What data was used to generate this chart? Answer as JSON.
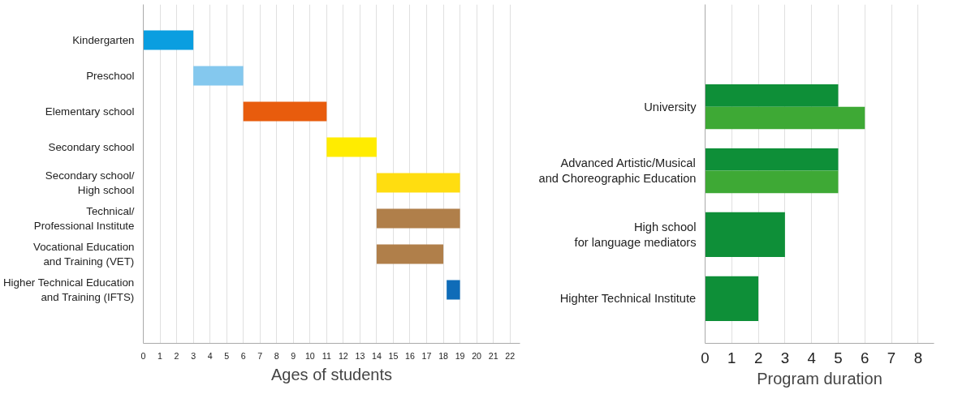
{
  "chart_data": [
    {
      "type": "bar",
      "orientation": "horizontal",
      "xlabel": "Ages of students",
      "categories": [
        "Kindergarten",
        "Preschool",
        "Elementary school",
        "Secondary school",
        "Secondary school/\nHigh school",
        "Technical/\nProfessional Institute",
        "Vocational Education\nand Training (VET)",
        "Higher Technical Education\nand Training (IFTS)"
      ],
      "base": [
        0,
        3,
        6,
        11,
        14,
        14,
        14,
        18.2
      ],
      "values": [
        3,
        3,
        5,
        3,
        5,
        5,
        4,
        0.8
      ],
      "colors": [
        "#0a9ee0",
        "#84c8ee",
        "#e85c0d",
        "#ffec00",
        "#ffdd10",
        "#b07f4a",
        "#b07f4a",
        "#0f6cb8"
      ],
      "xlim": [
        0,
        22.6
      ],
      "xticks": [
        0,
        1,
        2,
        3,
        4,
        5,
        6,
        7,
        8,
        9,
        10,
        11,
        12,
        13,
        14,
        15,
        16,
        17,
        18,
        19,
        20,
        21,
        22
      ],
      "grid": "x"
    },
    {
      "type": "bar",
      "orientation": "horizontal",
      "xlabel": "Program duration",
      "categories": [
        "University",
        "Advanced Artistic/Musical\nand Choreographic Education",
        "High school\nfor language mediators",
        "Highter Technical Institute"
      ],
      "series": [
        {
          "color": "#0e8f38",
          "values": [
            5,
            5,
            3,
            2
          ]
        },
        {
          "color": "#3ea935",
          "values": [
            6,
            5,
            null,
            null
          ]
        }
      ],
      "xlim": [
        0,
        8.6
      ],
      "xticks": [
        0,
        1,
        2,
        3,
        4,
        5,
        6,
        7,
        8
      ],
      "grid": "x"
    }
  ]
}
